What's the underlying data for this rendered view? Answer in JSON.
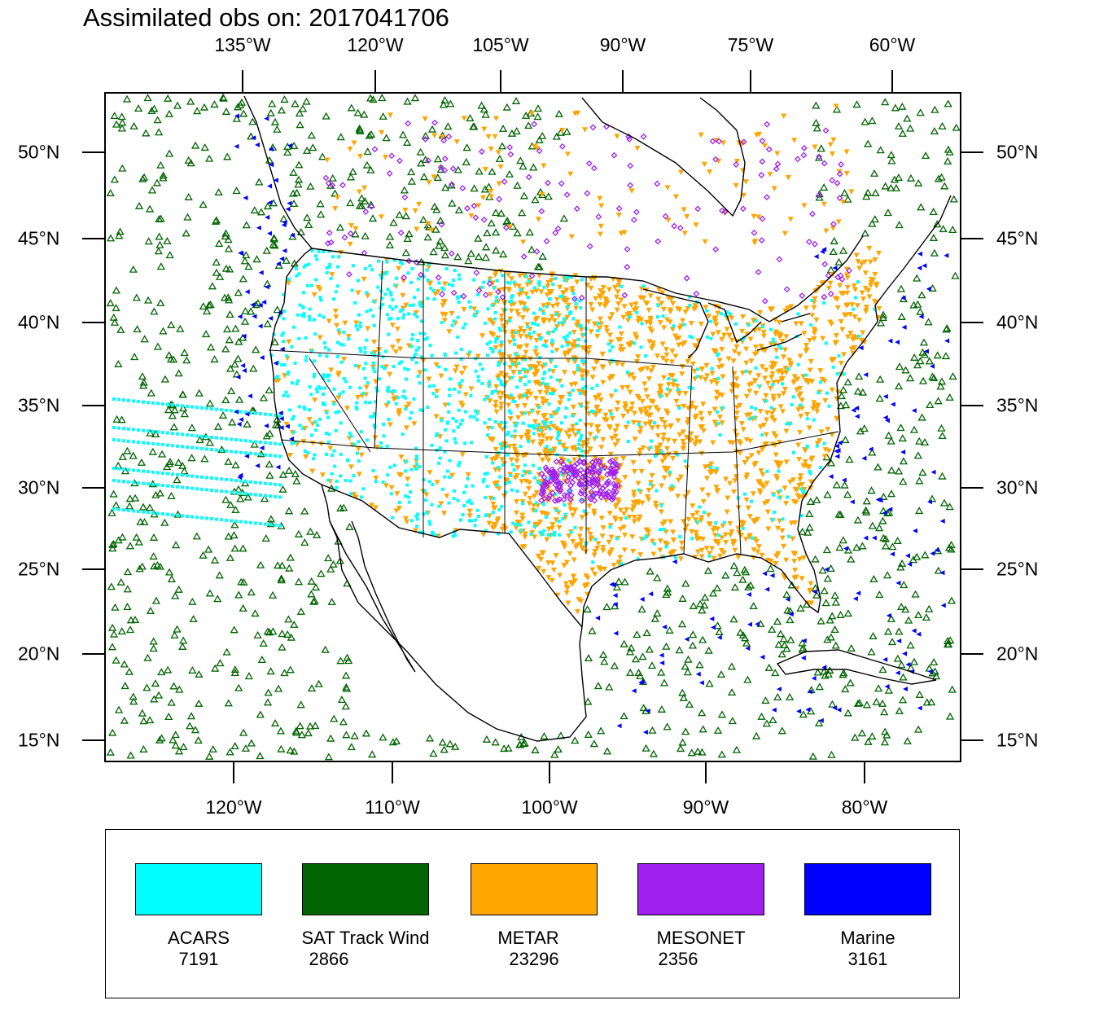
{
  "title": "Assimilated obs on: 2017041706",
  "top_lon_labels": [
    "135°W",
    "120°W",
    "105°W",
    "90°W",
    "75°W",
    "60°W"
  ],
  "bottom_lon_labels": [
    "120°W",
    "110°W",
    "100°W",
    "90°W",
    "80°W"
  ],
  "lat_labels": [
    "50°N",
    "45°N",
    "40°N",
    "35°N",
    "30°N",
    "25°N",
    "20°N",
    "15°N"
  ],
  "legend": [
    {
      "name": "ACARS",
      "count": "7191",
      "color": "#00ffff",
      "marker": "square"
    },
    {
      "name": "SAT Track Wind",
      "count": "2866",
      "color": "#006400",
      "marker": "triangle-up"
    },
    {
      "name": "METAR",
      "count": "23296",
      "color": "#ffa500",
      "marker": "triangle-down"
    },
    {
      "name": "MESONET",
      "count": "2356",
      "color": "#a020f0",
      "marker": "diamond"
    },
    {
      "name": "Marine",
      "count": "3161",
      "color": "#0000ff",
      "marker": "triangle-left"
    }
  ]
}
